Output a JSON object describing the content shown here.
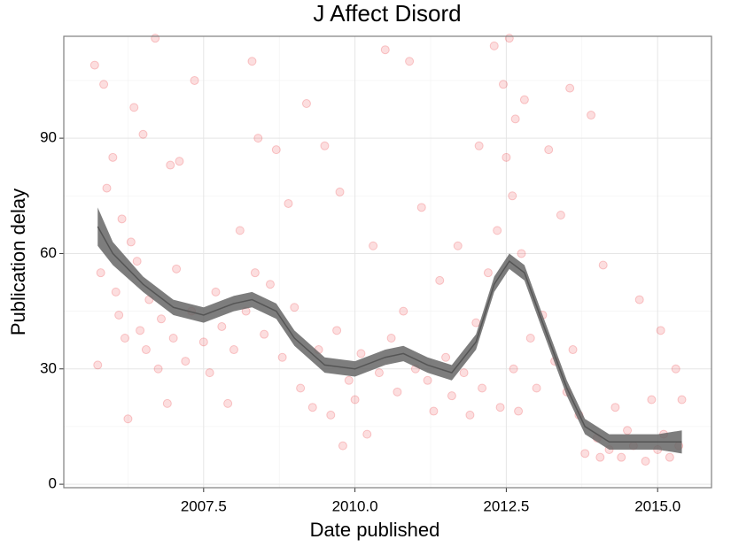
{
  "chart_data": {
    "type": "scatter",
    "title": "J Affect Disord",
    "x_label": "Date published",
    "y_label": "Publication delay",
    "xlim": [
      2005.19,
      2015.89
    ],
    "ylim": [
      -0.9,
      116.5
    ],
    "xticks": [
      2007.5,
      {
        "value": 2010,
        "label": "2010.0"
      },
      2012.5,
      {
        "value": 2015,
        "label": "2015.0"
      }
    ],
    "yticks": [
      0,
      30,
      60,
      90
    ],
    "grid": true,
    "color": "#e8000b",
    "x": [
      2005.7,
      2005.75,
      2005.8,
      2005.85,
      2005.9,
      2006.0,
      2006.05,
      2006.1,
      2006.15,
      2006.2,
      2006.25,
      2006.3,
      2006.35,
      2006.4,
      2006.45,
      2006.5,
      2006.55,
      2006.6,
      2006.7,
      2006.75,
      2006.8,
      2006.9,
      2006.95,
      2007.0,
      2007.05,
      2007.1,
      2007.2,
      2007.3,
      2007.35,
      2007.5,
      2007.6,
      2007.7,
      2007.8,
      2007.9,
      2008.0,
      2008.1,
      2008.2,
      2008.3,
      2008.35,
      2008.4,
      2008.5,
      2008.6,
      2008.7,
      2008.8,
      2008.9,
      2009.0,
      2009.1,
      2009.2,
      2009.3,
      2009.4,
      2009.5,
      2009.6,
      2009.7,
      2009.75,
      2009.8,
      2009.9,
      2010.0,
      2010.1,
      2010.2,
      2010.3,
      2010.4,
      2010.5,
      2010.6,
      2010.7,
      2010.8,
      2010.9,
      2011.0,
      2011.1,
      2011.2,
      2011.3,
      2011.4,
      2011.5,
      2011.6,
      2011.7,
      2011.8,
      2011.9,
      2012.0,
      2012.05,
      2012.1,
      2012.2,
      2012.3,
      2012.35,
      2012.4,
      2012.45,
      2012.5,
      2012.55,
      2012.6,
      2012.62,
      2012.65,
      2012.7,
      2012.75,
      2012.8,
      2012.9,
      2013.0,
      2013.1,
      2013.2,
      2013.3,
      2013.4,
      2013.5,
      2013.55,
      2013.6,
      2013.7,
      2013.8,
      2013.9,
      2014.0,
      2014.05,
      2014.1,
      2014.2,
      2014.3,
      2014.4,
      2014.5,
      2014.6,
      2014.7,
      2014.8,
      2014.9,
      2015.0,
      2015.05,
      2015.1,
      2015.2,
      2015.3,
      2015.35,
      2015.4
    ],
    "y": [
      109,
      31,
      55,
      104,
      77,
      85,
      50,
      44,
      69,
      38,
      17,
      63,
      98,
      58,
      40,
      91,
      35,
      48,
      116,
      30,
      43,
      21,
      83,
      38,
      56,
      84,
      32,
      45,
      105,
      37,
      29,
      50,
      41,
      21,
      35,
      66,
      45,
      110,
      55,
      90,
      39,
      52,
      87,
      33,
      73,
      46,
      25,
      99,
      20,
      35,
      88,
      18,
      40,
      76,
      10,
      27,
      22,
      34,
      13,
      62,
      29,
      113,
      38,
      24,
      45,
      110,
      30,
      72,
      27,
      19,
      53,
      33,
      23,
      62,
      29,
      18,
      42,
      88,
      25,
      55,
      114,
      66,
      20,
      104,
      85,
      116,
      75,
      30,
      95,
      19,
      60,
      100,
      38,
      25,
      44,
      87,
      32,
      70,
      24,
      103,
      35,
      18,
      8,
      96,
      12,
      7,
      57,
      9,
      20,
      7,
      14,
      10,
      48,
      6,
      22,
      9,
      40,
      13,
      7,
      30,
      10,
      22
    ],
    "smooth": {
      "color": "#666666",
      "x": [
        2005.75,
        2006.0,
        2006.5,
        2007.0,
        2007.5,
        2008.0,
        2008.3,
        2008.7,
        2009.0,
        2009.5,
        2010.0,
        2010.5,
        2010.8,
        2011.2,
        2011.6,
        2012.0,
        2012.3,
        2012.55,
        2012.8,
        2013.1,
        2013.5,
        2013.8,
        2014.2,
        2014.7,
        2015.0,
        2015.4
      ],
      "y": [
        67,
        60,
        52,
        46,
        44,
        47,
        48,
        45,
        38,
        31,
        30,
        33,
        34,
        31,
        29,
        37,
        52,
        58,
        55,
        42,
        25,
        15,
        11,
        11,
        11,
        11
      ],
      "lower": [
        62,
        57,
        50,
        44,
        42,
        45,
        46,
        43,
        36,
        29,
        28,
        31,
        32,
        29,
        27,
        35,
        50,
        56,
        53,
        40,
        23,
        13,
        9,
        9,
        9,
        8
      ],
      "upper": [
        72,
        63,
        54,
        48,
        46,
        49,
        50,
        47,
        40,
        33,
        32,
        35,
        36,
        33,
        31,
        39,
        54,
        60,
        57,
        44,
        27,
        17,
        13,
        13,
        13,
        14
      ]
    }
  }
}
